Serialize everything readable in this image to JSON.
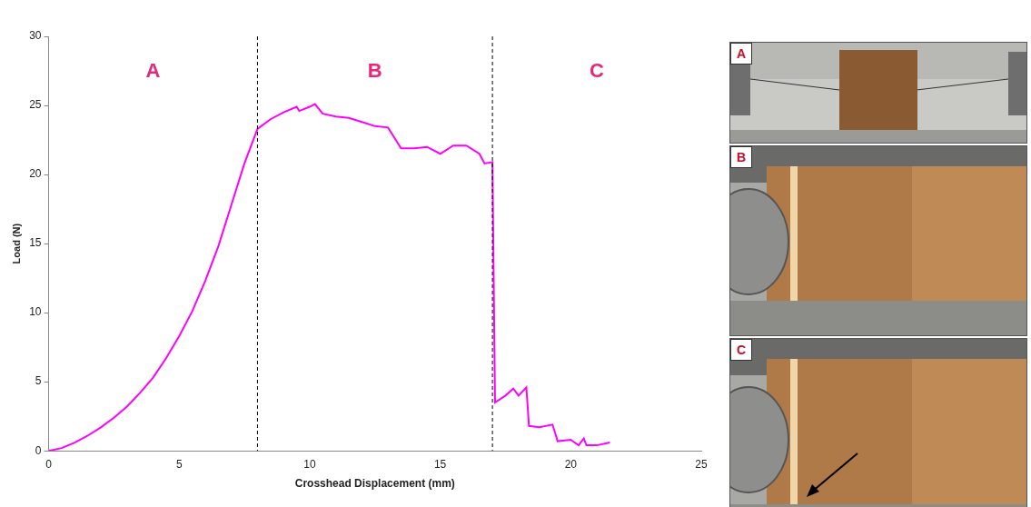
{
  "chart_data": {
    "type": "line",
    "x_label": "Crosshead Displacement (mm)",
    "y_label": "Load (N)",
    "x": [
      0,
      0.5,
      1,
      1.5,
      2,
      2.5,
      3,
      3.5,
      4,
      4.5,
      5,
      5.5,
      6,
      6.5,
      7,
      7.5,
      8,
      8.5,
      9,
      9.5,
      9.6,
      10,
      10.2,
      10.5,
      11,
      11.5,
      12,
      12.5,
      13,
      13.3,
      13.5,
      14,
      14.5,
      15,
      15.5,
      16,
      16.5,
      16.7,
      17,
      17.1,
      17.5,
      17.8,
      18,
      18.3,
      18.4,
      18.8,
      19.3,
      19.5,
      20,
      20.3,
      20.5,
      20.6,
      21,
      21.5
    ],
    "values": [
      0,
      0.2,
      0.6,
      1.1,
      1.7,
      2.4,
      3.2,
      4.2,
      5.3,
      6.7,
      8.3,
      10.1,
      12.3,
      14.8,
      17.8,
      20.8,
      23.3,
      24,
      24.5,
      24.9,
      24.6,
      24.9,
      25.1,
      24.4,
      24.2,
      24.1,
      23.8,
      23.5,
      23.4,
      22.5,
      21.9,
      21.9,
      22,
      21.5,
      22.1,
      22.1,
      21.5,
      20.8,
      20.9,
      3.5,
      4,
      4.5,
      4,
      4.6,
      1.8,
      1.7,
      1.9,
      0.7,
      0.8,
      0.4,
      0.9,
      0.4,
      0.4,
      0.6
    ],
    "color": "#ff00ff",
    "xlim": [
      0,
      25
    ],
    "xticks": [
      0,
      5,
      10,
      15,
      20,
      25
    ],
    "ylim": [
      0,
      30
    ],
    "yticks": [
      0,
      5,
      10,
      15,
      20,
      25,
      30
    ],
    "grid": false,
    "region_boundaries": [
      8,
      17
    ],
    "region_labels": [
      "A",
      "B",
      "C"
    ]
  },
  "photo_panels": {
    "labels": [
      "A",
      "B",
      "C"
    ]
  }
}
